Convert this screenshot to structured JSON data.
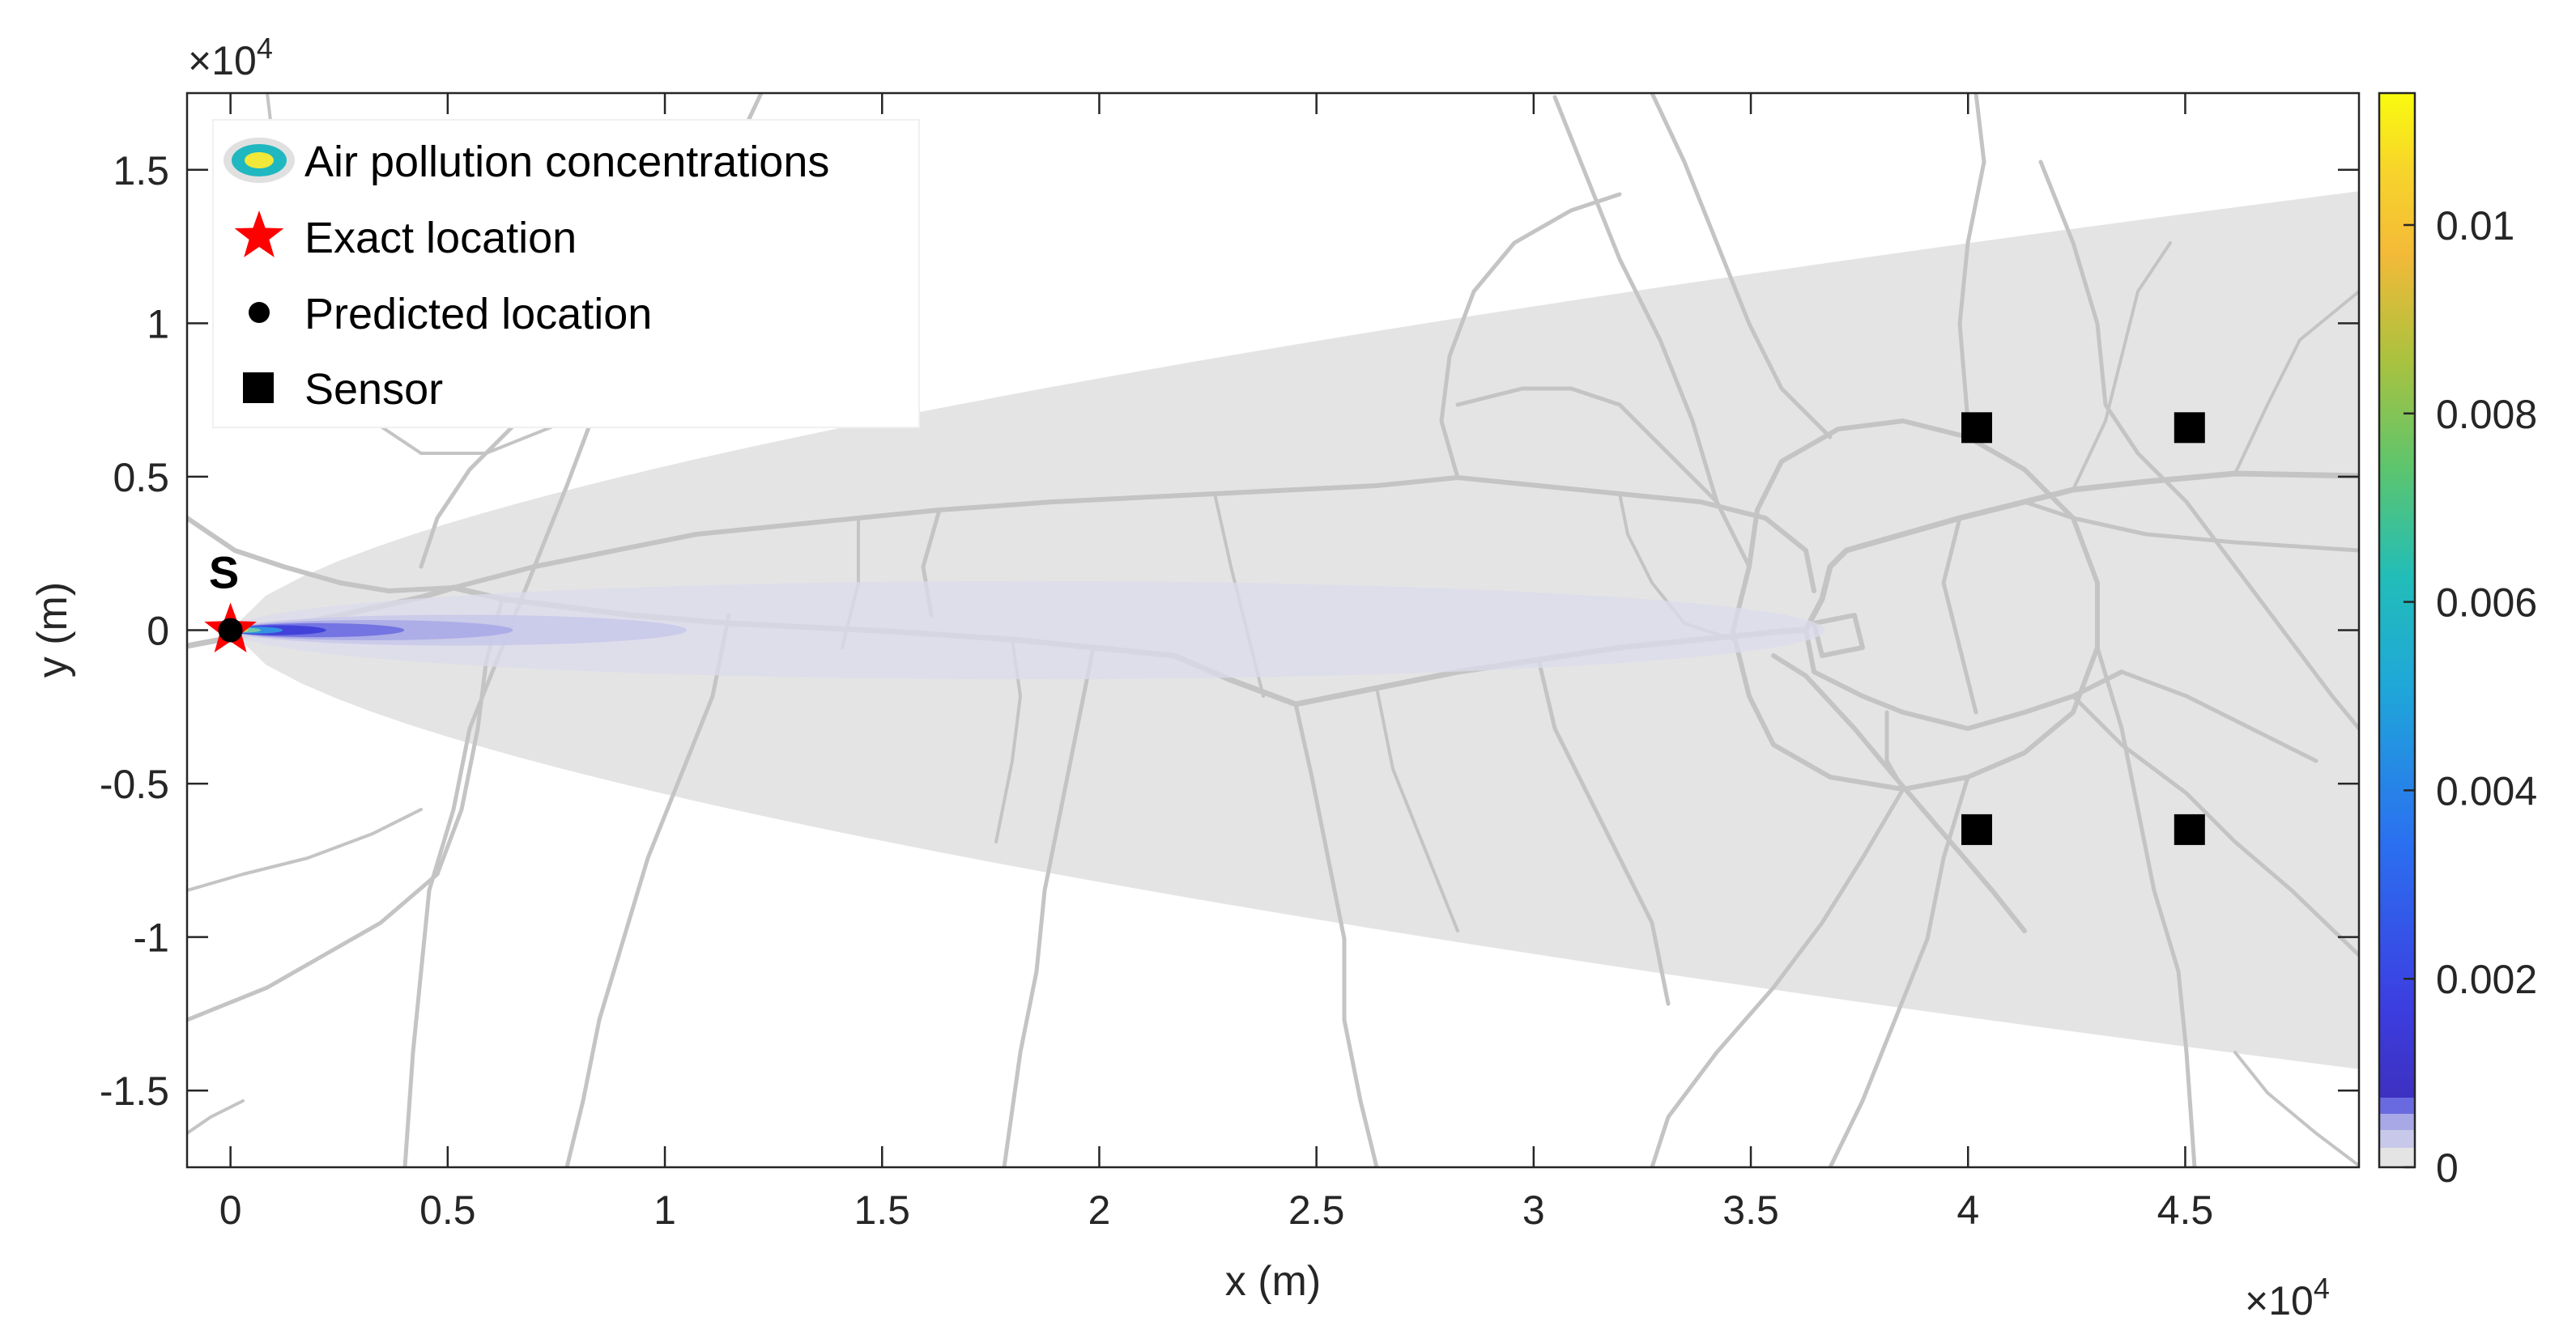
{
  "chart_data": {
    "type": "contour-map",
    "xlabel": "x (m)",
    "ylabel": "y (m)",
    "x_exponent_label": "×10",
    "x_exponent_power": "4",
    "y_exponent_label": "×10",
    "y_exponent_power": "4",
    "xlim": [
      -1000,
      49000
    ],
    "ylim": [
      -17500,
      17500
    ],
    "x_ticks": [
      0,
      5000,
      10000,
      15000,
      20000,
      25000,
      30000,
      35000,
      40000,
      45000
    ],
    "x_tick_labels": [
      "0",
      "0.5",
      "1",
      "1.5",
      "2",
      "2.5",
      "3",
      "3.5",
      "4",
      "4.5"
    ],
    "y_ticks": [
      15000,
      10000,
      5000,
      0,
      -5000,
      -10000,
      -15000
    ],
    "y_tick_labels": [
      "1.5",
      "1",
      "0.5",
      "0",
      "-0.5",
      "-1",
      "-1.5"
    ],
    "grid": false,
    "legend_position": "top-left",
    "legend": [
      {
        "label": "Air pollution concentrations",
        "marker": "concentration-ellipse-icon"
      },
      {
        "label": "Exact location",
        "marker": "red-star-icon"
      },
      {
        "label": "Predicted location",
        "marker": "black-dot-icon"
      },
      {
        "label": "Sensor",
        "marker": "black-square-icon"
      }
    ],
    "source_label": "S",
    "exact_location": {
      "x": 0,
      "y": 0
    },
    "predicted_location": {
      "x": 0,
      "y": 0
    },
    "sensors": [
      {
        "x": 40200,
        "y": 6600
      },
      {
        "x": 45100,
        "y": 6600
      },
      {
        "x": 40200,
        "y": -6500
      },
      {
        "x": 45100,
        "y": -6500
      }
    ],
    "plume_envelope": {
      "x_end": 49000,
      "half_width_end": 14300,
      "color": "#e4e4e4"
    },
    "plume_contours": [
      {
        "x_end": 36700,
        "half_width": 1600,
        "color": "#dcdcee"
      },
      {
        "x_end": 10500,
        "half_width": 500,
        "color": "#c8c8ea"
      },
      {
        "x_end": 6500,
        "half_width": 330,
        "color": "#a8a8e6"
      },
      {
        "x_end": 4000,
        "half_width": 230,
        "color": "#6a6ae0"
      },
      {
        "x_end": 2200,
        "half_width": 160,
        "color": "#3a3ad8"
      },
      {
        "x_end": 1200,
        "half_width": 110,
        "color": "#2f9fe0"
      },
      {
        "x_end": 700,
        "half_width": 80,
        "color": "#7fd0a0"
      },
      {
        "x_end": 400,
        "half_width": 60,
        "color": "#f2e24a"
      }
    ],
    "colorbar": {
      "min": 0,
      "max": 0.0114,
      "ticks": [
        0,
        0.002,
        0.004,
        0.006,
        0.008,
        0.01
      ],
      "tick_labels": [
        "0",
        "0.002",
        "0.004",
        "0.006",
        "0.008",
        "0.01"
      ],
      "colors": [
        "#3e26a8",
        "#2b6ff0",
        "#1fa8d8",
        "#2fc1a0",
        "#7fc95a",
        "#d3b83a",
        "#fbd230",
        "#f9fb0e"
      ]
    }
  }
}
